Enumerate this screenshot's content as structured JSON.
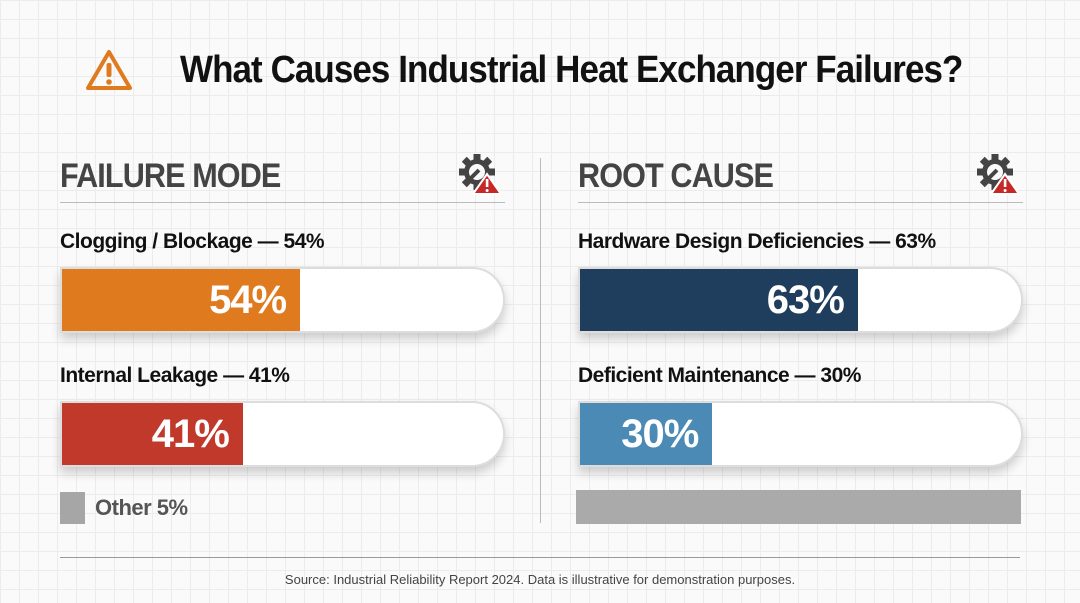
{
  "title": "What Causes Industrial Heat Exchanger Failures?",
  "icons": {
    "title": "warning-triangle-icon",
    "panel": "gear-wrench-warning-icon"
  },
  "colors": {
    "accent": "#e07a1f",
    "other": "#a6a6a6"
  },
  "chart_data": [
    {
      "type": "bar",
      "title": "FAILURE MODE",
      "orientation": "horizontal",
      "xlim": [
        0,
        100
      ],
      "categories": [
        "Clogging / Blockage",
        "Internal Leakage"
      ],
      "values": [
        54,
        41
      ],
      "labels": [
        "Clogging / Blockage — 54%",
        "Internal Leakage — 41%"
      ],
      "data_labels": [
        "54%",
        "41%"
      ],
      "colors": [
        "#e07a1f",
        "#c0392b"
      ],
      "other": {
        "label": "Other 5%",
        "value": 5
      }
    },
    {
      "type": "bar",
      "title": "ROOT CAUSE",
      "orientation": "horizontal",
      "xlim": [
        0,
        100
      ],
      "categories": [
        "Hardware Design Deficiencies",
        "Deficient Maintenance"
      ],
      "values": [
        63,
        30
      ],
      "labels": [
        "Hardware Design Deficiencies — 63%",
        "Deficient Maintenance — 30%"
      ],
      "data_labels": [
        "63%",
        "30%"
      ],
      "colors": [
        "#1f3d5c",
        "#4a8ab5"
      ]
    }
  ],
  "source": "Source: Industrial Reliability Report 2024. Data is illustrative for demonstration purposes."
}
